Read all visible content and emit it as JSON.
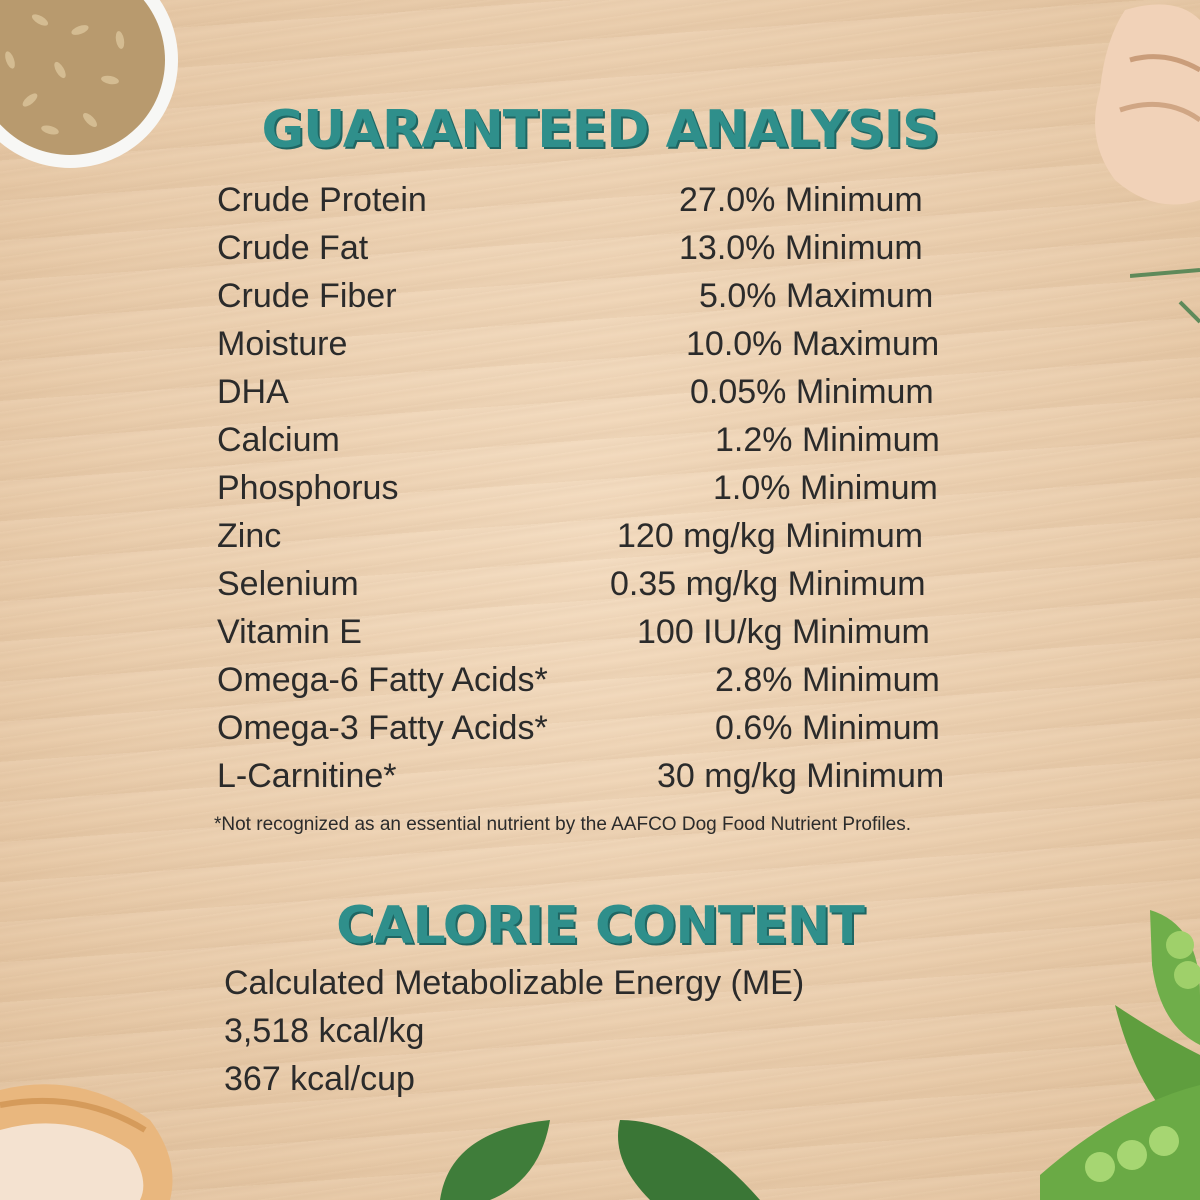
{
  "guaranteed_analysis": {
    "title": "GUARANTEED ANALYSIS",
    "rows": [
      {
        "label": "Crude Protein",
        "value": "27.0% Minimum"
      },
      {
        "label": "Crude Fat",
        "value": "13.0% Minimum"
      },
      {
        "label": "Crude Fiber",
        "value": "5.0% Maximum"
      },
      {
        "label": "Moisture",
        "value": "10.0% Maximum"
      },
      {
        "label": "DHA",
        "value": "0.05% Minimum"
      },
      {
        "label": "Calcium",
        "value": "1.2% Minimum"
      },
      {
        "label": "Phosphorus",
        "value": "1.0% Minimum"
      },
      {
        "label": "Zinc",
        "value": "120 mg/kg Minimum"
      },
      {
        "label": "Selenium",
        "value": "0.35 mg/kg Minimum"
      },
      {
        "label": "Vitamin E",
        "value": "100 IU/kg Minimum"
      },
      {
        "label": "Omega-6 Fatty Acids*",
        "value": "2.8% Minimum"
      },
      {
        "label": "Omega-3 Fatty Acids*",
        "value": "0.6% Minimum"
      },
      {
        "label": "L-Carnitine*",
        "value": "30 mg/kg Minimum"
      }
    ],
    "footnote": "*Not recognized as an essential nutrient by the AAFCO Dog Food Nutrient Profiles."
  },
  "calorie_content": {
    "title": "CALORIE CONTENT",
    "lines": [
      "Calculated Metabolizable Energy (ME)",
      "3,518 kcal/kg",
      "367 kcal/cup"
    ]
  },
  "colors": {
    "heading": "#2f8f8b",
    "text": "#2b2b2b",
    "background": "#ecd0b0"
  }
}
